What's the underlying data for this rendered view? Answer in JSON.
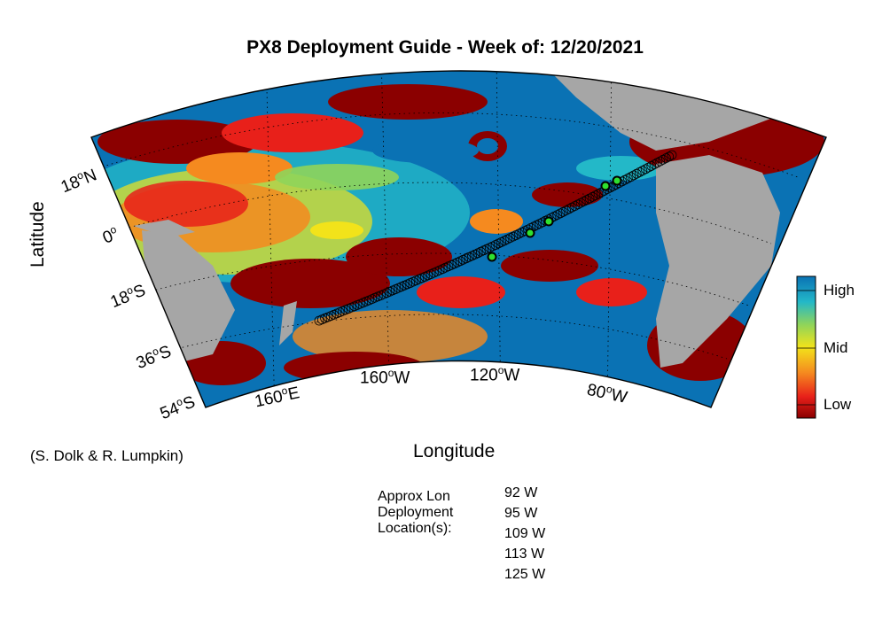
{
  "title": "PX8 Deployment Guide - Week of: 12/20/2021",
  "axes": {
    "ylabel": "Latitude",
    "xlabel": "Longitude",
    "lat_ticks": [
      {
        "value": "18",
        "hemi": "N"
      },
      {
        "value": "0",
        "hemi": ""
      },
      {
        "value": "18",
        "hemi": "S"
      },
      {
        "value": "36",
        "hemi": "S"
      },
      {
        "value": "54",
        "hemi": "S"
      }
    ],
    "lon_ticks": [
      {
        "value": "160",
        "hemi": "E"
      },
      {
        "value": "160",
        "hemi": "W"
      },
      {
        "value": "120",
        "hemi": "W"
      },
      {
        "value": "80",
        "hemi": "W"
      }
    ]
  },
  "colorbar": {
    "high": "High",
    "mid": "Mid",
    "low": "Low",
    "colors": [
      "#8b0000",
      "#e8201a",
      "#f58a1f",
      "#f2e31a",
      "#8fd45a",
      "#23b8c8",
      "#0a72b4"
    ]
  },
  "credit": "(S. Dolk & R. Lumpkin)",
  "deployment": {
    "heading_lines": [
      "Approx Lon",
      "Deployment",
      "Location(s):"
    ],
    "locations": [
      "92 W",
      "95 W",
      "109 W",
      "113 W",
      "125 W"
    ]
  },
  "map_colors": {
    "land": "#a6a6a6",
    "ocean_high": "#0a72b4",
    "low": "#8b0000",
    "track": "#000000",
    "deploy_marker": "#2fe02f"
  }
}
